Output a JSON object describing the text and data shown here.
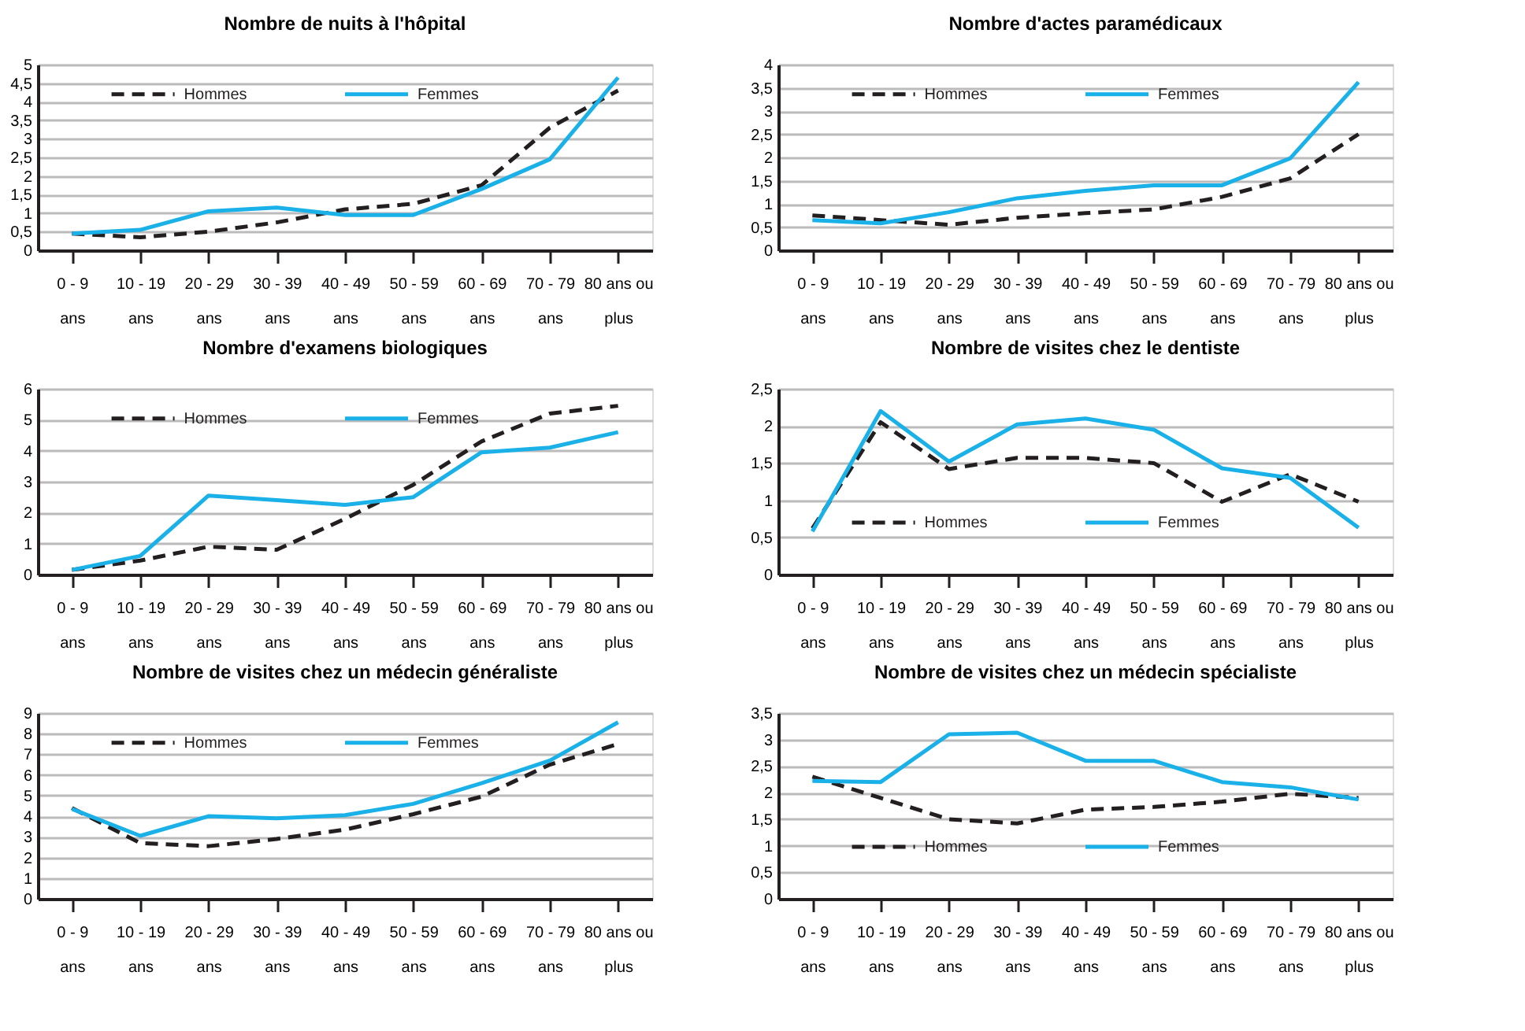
{
  "chart_data": [
    {
      "type": "line",
      "title": "Nombre de nuits à l'hôpital",
      "categories": [
        "0 - 9 ans",
        "10 - 19 ans",
        "20 - 29 ans",
        "30 - 39 ans",
        "40 - 49 ans",
        "50 - 59 ans",
        "60 - 69 ans",
        "70 - 79 ans",
        "80 ans ou plus"
      ],
      "series": [
        {
          "name": "Hommes",
          "color": "#231f20",
          "line_style": "dashed",
          "values": [
            0.45,
            0.35,
            0.5,
            0.75,
            1.1,
            1.25,
            1.75,
            3.3,
            4.3
          ]
        },
        {
          "name": "Femmes",
          "color": "#1ab0e8",
          "line_style": "solid",
          "values": [
            0.45,
            0.55,
            1.05,
            1.15,
            0.95,
            0.95,
            1.65,
            2.45,
            4.65
          ]
        }
      ],
      "ylim": [
        0,
        5
      ],
      "yticks": [
        0,
        {
          "value": 0.5,
          "label": "0,5"
        },
        1,
        {
          "value": 1.5,
          "label": "1,5"
        },
        2,
        {
          "value": 2.5,
          "label": "2,5"
        },
        3,
        {
          "value": 3.5,
          "label": "3,5"
        },
        4,
        {
          "value": 4.5,
          "label": "4,5"
        },
        5
      ],
      "grid": "y",
      "legend": "top"
    },
    {
      "type": "line",
      "title": "Nombre d'actes paramédicaux",
      "categories": [
        "0 - 9 ans",
        "10 - 19 ans",
        "20 - 29 ans",
        "30 - 39 ans",
        "40 - 49 ans",
        "50 - 59 ans",
        "60 - 69 ans",
        "70 - 79 ans",
        "80 ans ou plus"
      ],
      "series": [
        {
          "name": "Hommes",
          "color": "#231f20",
          "line_style": "dashed",
          "values": [
            0.75,
            0.65,
            0.55,
            0.7,
            0.8,
            0.88,
            1.15,
            1.55,
            2.5
          ]
        },
        {
          "name": "Femmes",
          "color": "#1ab0e8",
          "line_style": "solid",
          "values": [
            0.65,
            0.58,
            0.82,
            1.12,
            1.28,
            1.4,
            1.4,
            1.98,
            3.62
          ]
        }
      ],
      "ylim": [
        0,
        4
      ],
      "yticks": [
        0,
        {
          "value": 0.5,
          "label": "0,5"
        },
        1,
        {
          "value": 1.5,
          "label": "1,5"
        },
        2,
        {
          "value": 2.5,
          "label": "2,5"
        },
        3,
        {
          "value": 3.5,
          "label": "3,5"
        },
        4
      ],
      "grid": "y",
      "legend": "top"
    },
    {
      "type": "line",
      "title": "Nombre d'examens biologiques",
      "categories": [
        "0 - 9 ans",
        "10 - 19 ans",
        "20 - 29 ans",
        "30 - 39 ans",
        "40 - 49 ans",
        "50 - 59 ans",
        "60 - 69 ans",
        "70 - 79 ans",
        "80 ans ou plus"
      ],
      "series": [
        {
          "name": "Hommes",
          "color": "#231f20",
          "line_style": "dashed",
          "values": [
            0.15,
            0.45,
            0.9,
            0.8,
            1.8,
            2.9,
            4.3,
            5.2,
            5.45
          ]
        },
        {
          "name": "Femmes",
          "color": "#1ab0e8",
          "line_style": "solid",
          "values": [
            0.15,
            0.6,
            2.55,
            2.4,
            2.25,
            2.5,
            3.95,
            4.1,
            4.6
          ]
        }
      ],
      "ylim": [
        0,
        6
      ],
      "yticks": [
        0,
        1,
        2,
        3,
        4,
        5,
        6
      ],
      "grid": "y",
      "legend": "top"
    },
    {
      "type": "line",
      "title": "Nombre de visites chez le dentiste",
      "categories": [
        "0 - 9 ans",
        "10 - 19 ans",
        "20 - 29 ans",
        "30 - 39 ans",
        "40 - 49 ans",
        "50 - 59 ans",
        "60 - 69 ans",
        "70 - 79 ans",
        "80 ans ou plus"
      ],
      "series": [
        {
          "name": "Hommes",
          "color": "#231f20",
          "line_style": "dashed",
          "values": [
            0.62,
            2.05,
            1.42,
            1.57,
            1.57,
            1.5,
            0.98,
            1.35,
            0.98
          ]
        },
        {
          "name": "Femmes",
          "color": "#1ab0e8",
          "line_style": "solid",
          "values": [
            0.58,
            2.2,
            1.52,
            2.02,
            2.1,
            1.95,
            1.43,
            1.3,
            0.63
          ]
        }
      ],
      "ylim": [
        0,
        2.5
      ],
      "yticks": [
        0,
        {
          "value": 0.5,
          "label": "0,5"
        },
        1,
        {
          "value": 1.5,
          "label": "1,5"
        },
        2,
        {
          "value": 2.5,
          "label": "2,5"
        }
      ],
      "grid": "y",
      "legend": "bottom"
    },
    {
      "type": "line",
      "title": "Nombre de visites chez un médecin généraliste",
      "categories": [
        "0 - 9 ans",
        "10 - 19 ans",
        "20 - 29 ans",
        "30 - 39 ans",
        "40 - 49 ans",
        "50 - 59 ans",
        "60 - 69 ans",
        "70 - 79 ans",
        "80 ans ou plus"
      ],
      "series": [
        {
          "name": "Hommes",
          "color": "#231f20",
          "line_style": "dashed",
          "values": [
            4.4,
            2.7,
            2.55,
            2.9,
            3.35,
            4.1,
            4.95,
            6.5,
            7.5
          ]
        },
        {
          "name": "Femmes",
          "color": "#1ab0e8",
          "line_style": "solid",
          "values": [
            4.35,
            3.05,
            4.0,
            3.9,
            4.05,
            4.6,
            5.6,
            6.7,
            8.55
          ]
        }
      ],
      "ylim": [
        0,
        9
      ],
      "yticks": [
        0,
        1,
        2,
        3,
        4,
        5,
        6,
        7,
        8,
        9
      ],
      "grid": "y",
      "legend": "top"
    },
    {
      "type": "line",
      "title": "Nombre de visites chez un médecin spécialiste",
      "categories": [
        "0 - 9 ans",
        "10 - 19 ans",
        "20 - 29 ans",
        "30 - 39 ans",
        "40 - 49 ans",
        "50 - 59 ans",
        "60 - 69 ans",
        "70 - 79 ans",
        "80 ans ou plus"
      ],
      "series": [
        {
          "name": "Hommes",
          "color": "#231f20",
          "line_style": "dashed",
          "values": [
            2.3,
            1.9,
            1.5,
            1.42,
            1.68,
            1.73,
            1.83,
            1.98,
            1.9
          ]
        },
        {
          "name": "Femmes",
          "color": "#1ab0e8",
          "line_style": "solid",
          "values": [
            2.22,
            2.2,
            3.1,
            3.13,
            2.6,
            2.6,
            2.2,
            2.1,
            1.87
          ]
        }
      ],
      "ylim": [
        0,
        3.5
      ],
      "yticks": [
        0,
        {
          "value": 0.5,
          "label": "0,5"
        },
        1,
        {
          "value": 1.5,
          "label": "1,5"
        },
        2,
        {
          "value": 2.5,
          "label": "2,5"
        },
        3,
        {
          "value": 3.5,
          "label": "3,5"
        }
      ],
      "grid": "y",
      "legend": "bottom"
    }
  ]
}
